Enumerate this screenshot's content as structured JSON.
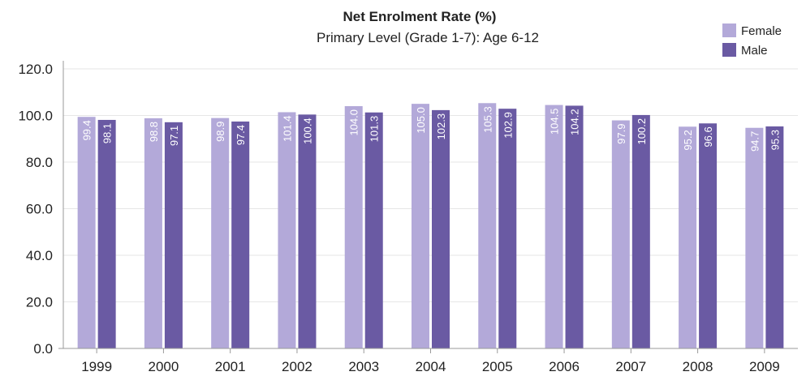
{
  "chart_data": {
    "type": "bar",
    "title": "Net Enrolment Rate (%)",
    "subtitle": "Primary Level (Grade 1-7): Age 6-12",
    "categories": [
      "1999",
      "2000",
      "2001",
      "2002",
      "2003",
      "2004",
      "2005",
      "2006",
      "2007",
      "2008",
      "2009"
    ],
    "series": [
      {
        "name": "Female",
        "color": "#b3a9d9",
        "values": [
          99.4,
          98.8,
          98.9,
          101.4,
          104.0,
          105.0,
          105.3,
          104.5,
          97.9,
          95.2,
          94.7
        ],
        "labels": [
          "99.4",
          "98.8",
          "98.9",
          "101.4",
          "104.0",
          "105.0",
          "105.3",
          "104.5",
          "97.9",
          "95.2",
          "94.7"
        ]
      },
      {
        "name": "Male",
        "color": "#6a5aa3",
        "values": [
          98.1,
          97.1,
          97.4,
          100.4,
          101.3,
          102.3,
          102.9,
          104.2,
          100.2,
          96.6,
          95.3
        ],
        "labels": [
          "98.1",
          "97.1",
          "97.4",
          "100.4",
          "101.3",
          "102.3",
          "102.9",
          "104.2",
          "100.2",
          "96.6",
          "95.3"
        ]
      }
    ],
    "yticks": [
      "0.0",
      "20.0",
      "40.0",
      "60.0",
      "80.0",
      "100.0",
      "120.0"
    ],
    "ylim": [
      0,
      120
    ],
    "xlabel": "",
    "ylabel": "",
    "grid": true,
    "legend_position": "top-right",
    "data_labels": "inside-top-rotated"
  }
}
